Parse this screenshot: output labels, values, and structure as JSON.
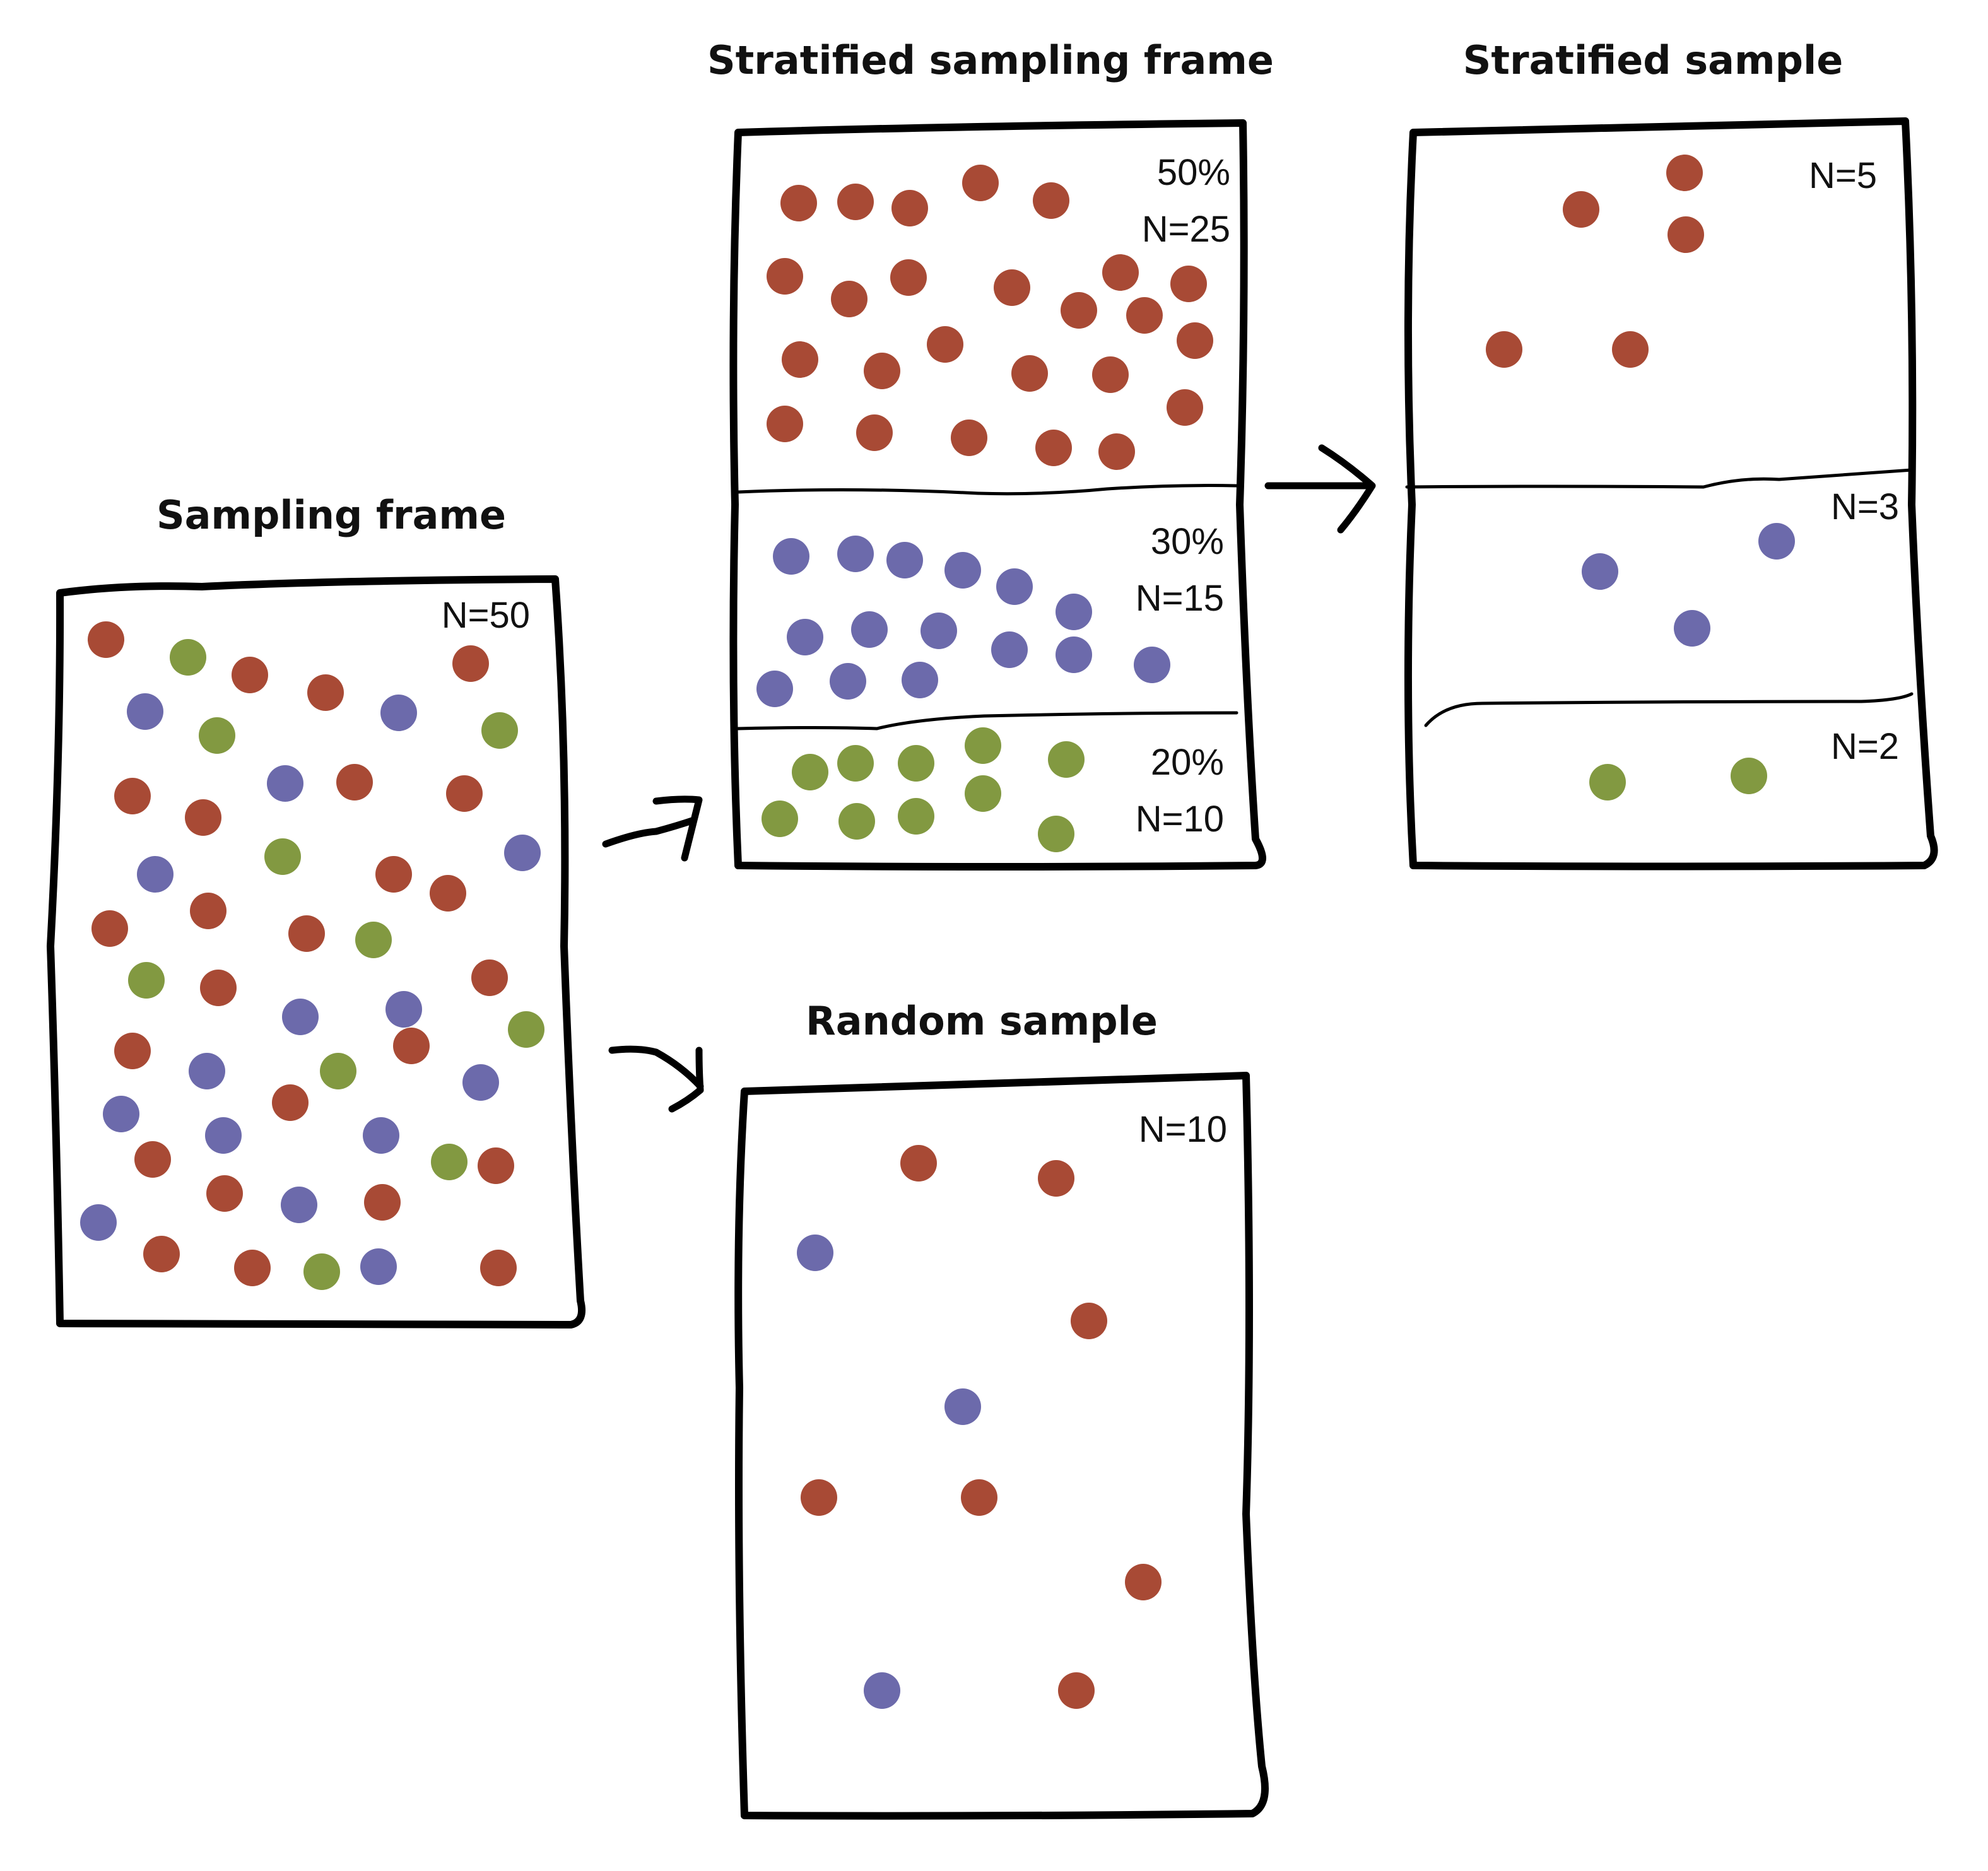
{
  "colors": {
    "red": "#A84A35",
    "blue": "#6C6AAB",
    "green": "#829941",
    "stroke": "#000000"
  },
  "panels": {
    "sampling_frame": {
      "title": "Sampling frame",
      "count_label": "N=50"
    },
    "stratified_frame": {
      "title": "Stratified sampling frame",
      "strata": [
        {
          "percent": "50%",
          "count_label": "N=25"
        },
        {
          "percent": "30%",
          "count_label": "N=15"
        },
        {
          "percent": "20%",
          "count_label": "N=10"
        }
      ]
    },
    "stratified_sample": {
      "title": "Stratified sample",
      "strata": [
        {
          "count_label": "N=5"
        },
        {
          "count_label": "N=3"
        },
        {
          "count_label": "N=2"
        }
      ]
    },
    "random_sample": {
      "title": "Random sample",
      "count_label": "N=10"
    }
  }
}
